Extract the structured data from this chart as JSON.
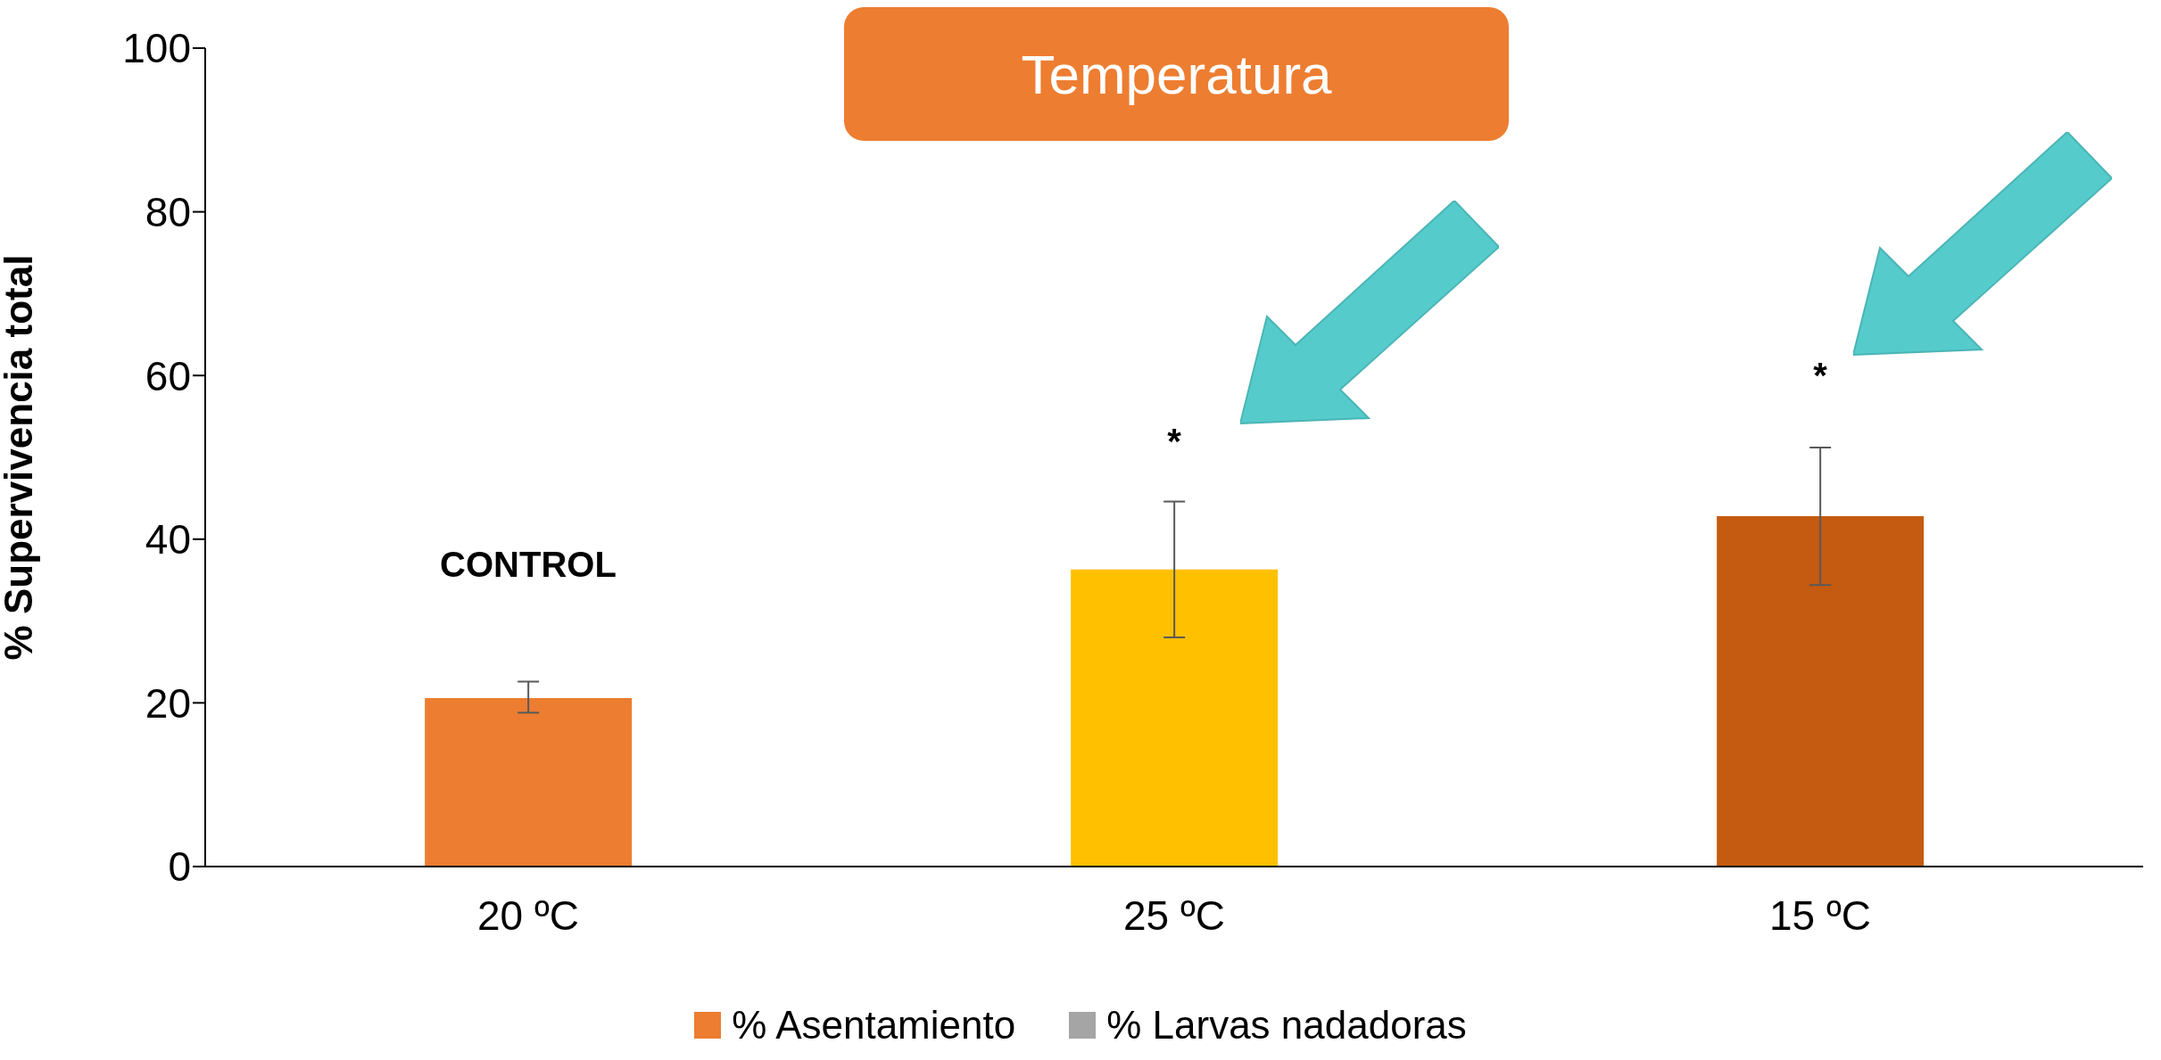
{
  "chart_data": {
    "type": "bar",
    "title": "Temperatura",
    "ylabel": "% Supervivencia total",
    "categories": [
      "20 ºC",
      "25 ºC",
      "15 ºC"
    ],
    "stacked": true,
    "series": [
      {
        "name": "% Asentamiento",
        "color": "#ed7d31",
        "colors": [
          "#ed7d31",
          "#ffc000",
          "#c55a11"
        ],
        "values": [
          20.6,
          36.3,
          42.8
        ],
        "errors": [
          [
            18.8,
            22.6
          ],
          [
            28.0,
            44.6
          ],
          [
            34.4,
            51.2
          ]
        ]
      },
      {
        "name": "% Larvas nadadoras",
        "color": "#a5a5a5",
        "values": [
          null,
          null,
          null
        ]
      }
    ],
    "ylim": [
      0,
      100
    ],
    "yticks": [
      0,
      20,
      40,
      60,
      80,
      100
    ],
    "grid": false,
    "legend": "bottom",
    "annotations": [
      "CONTROL",
      "*",
      "*"
    ]
  }
}
